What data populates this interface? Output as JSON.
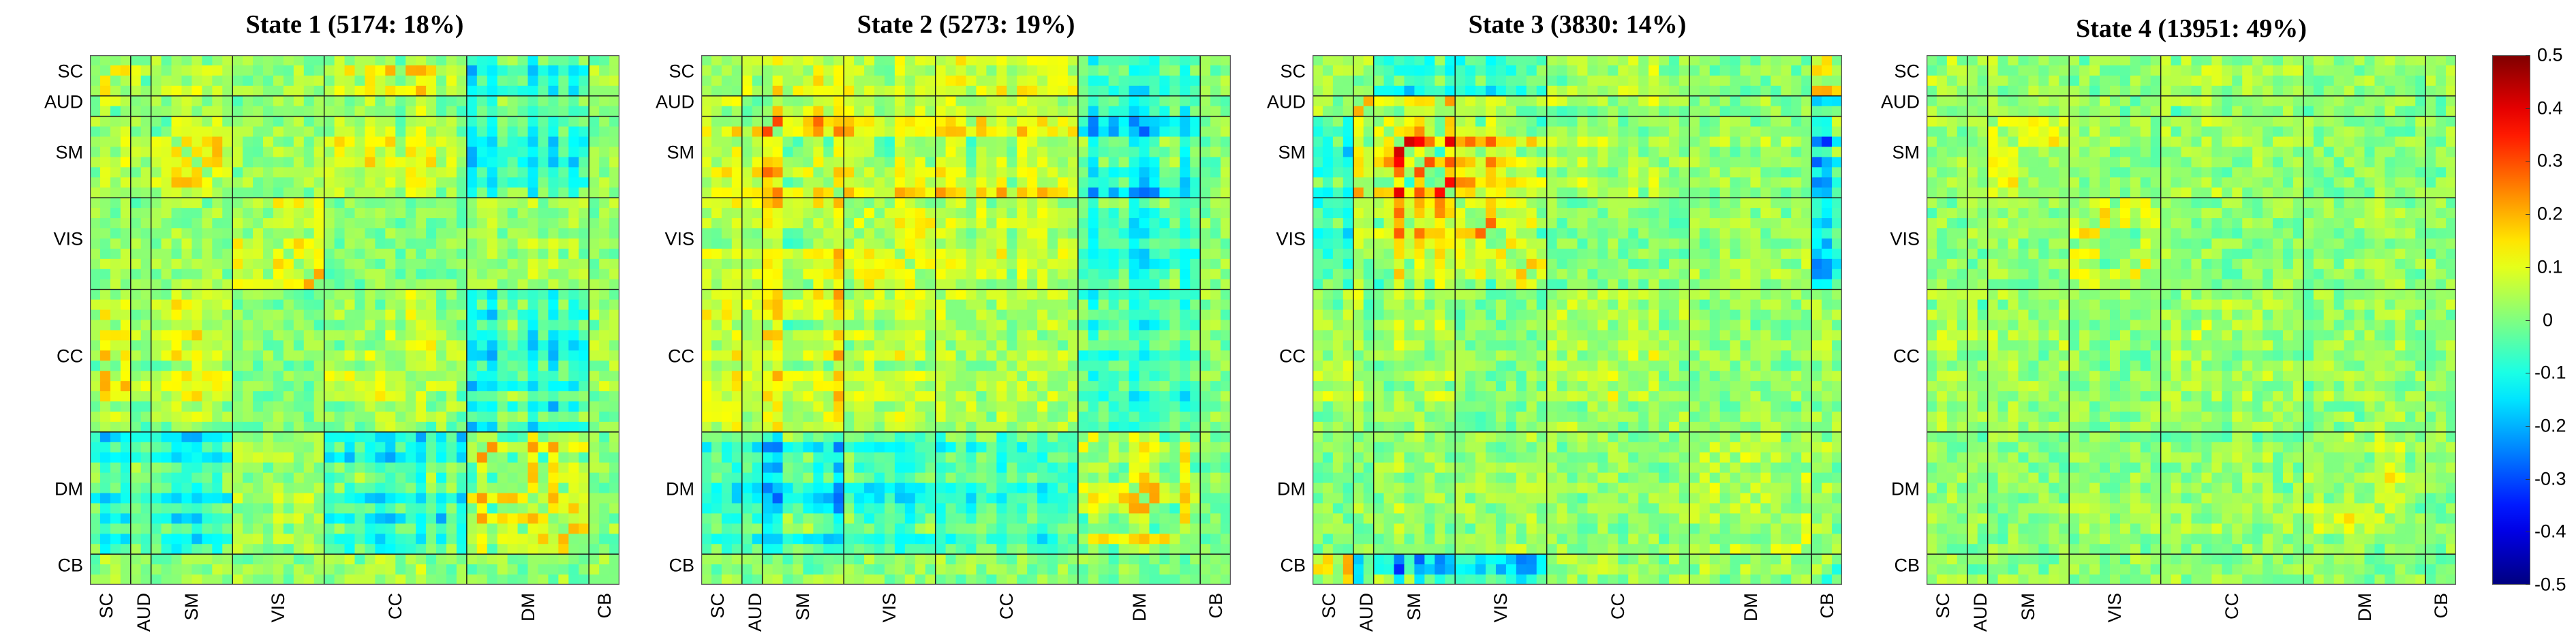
{
  "chart_data": {
    "type": "heatmap",
    "colormap": "jet",
    "color_range": [
      -0.5,
      0.5
    ],
    "colorbar": {
      "ticks": [
        0.5,
        0.4,
        0.3,
        0.2,
        0.1,
        0,
        -0.1,
        -0.2,
        -0.3,
        -0.4,
        -0.5
      ],
      "tick_labels": [
        "0.5",
        "0.4",
        "0.3",
        "0.2",
        "0.1",
        "0",
        "-0.1",
        "-0.2",
        "-0.3",
        "-0.4",
        "-0.5"
      ],
      "placement": "right"
    },
    "networks": [
      {
        "label": "SC",
        "n_components": 4
      },
      {
        "label": "AUD",
        "n_components": 2
      },
      {
        "label": "SM",
        "n_components": 8
      },
      {
        "label": "VIS",
        "n_components": 9
      },
      {
        "label": "CC",
        "n_components": 14
      },
      {
        "label": "DM",
        "n_components": 12
      },
      {
        "label": "CB",
        "n_components": 3
      }
    ],
    "block_order": [
      "SC",
      "AUD",
      "SM",
      "VIS",
      "CC",
      "DM",
      "CB"
    ],
    "states": [
      {
        "title": "State 1 (5174: 18%)",
        "state": 1,
        "count": 5174,
        "percent": 18,
        "block_means": [
          [
            0.1,
            0.08,
            0.07,
            0.02,
            0.12,
            -0.12,
            0.05
          ],
          [
            0.08,
            0.1,
            0.07,
            0.02,
            0.1,
            -0.1,
            0.03
          ],
          [
            0.07,
            0.07,
            0.13,
            0.03,
            0.1,
            -0.12,
            0.05
          ],
          [
            0.02,
            0.02,
            0.03,
            0.12,
            0.0,
            0.04,
            0.03
          ],
          [
            0.12,
            0.1,
            0.1,
            0.0,
            0.08,
            -0.13,
            0.06
          ],
          [
            -0.12,
            -0.1,
            -0.12,
            0.04,
            -0.13,
            0.16,
            0.02
          ],
          [
            0.05,
            0.03,
            0.05,
            0.03,
            0.06,
            0.02,
            0.07
          ]
        ]
      },
      {
        "title": "State 2 (5273: 19%)",
        "state": 2,
        "count": 5273,
        "percent": 19,
        "block_means": [
          [
            0.1,
            0.09,
            0.12,
            0.08,
            0.1,
            -0.1,
            0.05
          ],
          [
            0.09,
            0.12,
            0.17,
            0.1,
            0.1,
            -0.12,
            0.04
          ],
          [
            0.12,
            0.17,
            0.24,
            0.15,
            0.14,
            -0.2,
            0.06
          ],
          [
            0.08,
            0.1,
            0.15,
            0.13,
            0.08,
            -0.12,
            0.04
          ],
          [
            0.1,
            0.1,
            0.14,
            0.08,
            0.06,
            -0.1,
            0.05
          ],
          [
            -0.1,
            -0.12,
            -0.2,
            -0.12,
            -0.1,
            0.2,
            0.02
          ],
          [
            0.05,
            0.04,
            0.06,
            0.04,
            0.05,
            0.02,
            0.06
          ]
        ]
      },
      {
        "title": "State 3 (3830: 14%)",
        "state": 3,
        "count": 3830,
        "percent": 14,
        "block_means": [
          [
            0.2,
            0.06,
            -0.12,
            -0.1,
            0.06,
            0.0,
            0.18
          ],
          [
            0.06,
            0.12,
            0.14,
            0.1,
            0.05,
            0.02,
            -0.18
          ],
          [
            -0.12,
            0.14,
            0.3,
            0.2,
            0.06,
            0.04,
            -0.3
          ],
          [
            -0.1,
            0.1,
            0.2,
            0.22,
            0.0,
            0.03,
            -0.2
          ],
          [
            0.06,
            0.05,
            0.06,
            0.0,
            0.07,
            0.02,
            0.04
          ],
          [
            0.0,
            0.02,
            0.04,
            0.03,
            0.02,
            0.08,
            0.05
          ],
          [
            0.18,
            -0.18,
            -0.3,
            -0.2,
            0.04,
            0.05,
            0.2
          ]
        ]
      },
      {
        "title": "State 4 (13951: 49%)",
        "state": 4,
        "count": 13951,
        "percent": 49,
        "block_means": [
          [
            0.09,
            0.04,
            0.04,
            0.01,
            0.05,
            0.02,
            0.03
          ],
          [
            0.04,
            0.1,
            0.05,
            0.02,
            0.05,
            0.01,
            0.0
          ],
          [
            0.04,
            0.05,
            0.11,
            0.03,
            0.04,
            0.01,
            0.02
          ],
          [
            0.01,
            0.02,
            0.03,
            0.11,
            0.02,
            0.03,
            0.03
          ],
          [
            0.05,
            0.05,
            0.04,
            0.02,
            0.06,
            0.03,
            0.03
          ],
          [
            0.02,
            0.01,
            0.01,
            0.03,
            0.03,
            0.08,
            0.02
          ],
          [
            0.03,
            0.0,
            0.02,
            0.03,
            0.03,
            0.02,
            0.07
          ]
        ]
      }
    ]
  }
}
